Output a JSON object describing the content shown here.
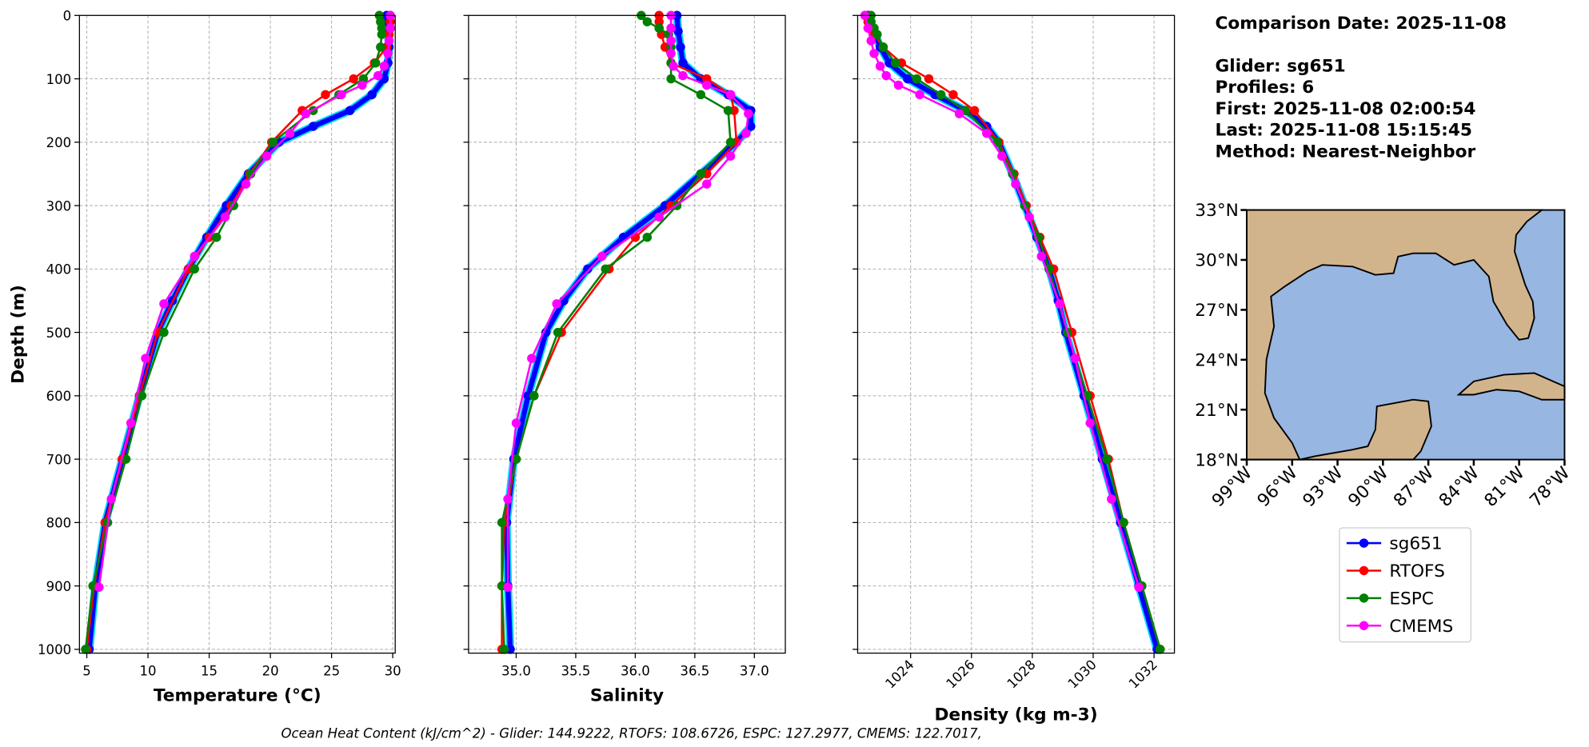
{
  "chart_data": [
    {
      "type": "line",
      "xlabel": "Temperature (°C)",
      "ylabel": "Depth (m)",
      "xlim": [
        4.4,
        30.2
      ],
      "xticks": [
        5,
        10,
        15,
        20,
        25,
        30
      ],
      "ylim": [
        1006,
        0
      ],
      "yticks": [
        0,
        100,
        200,
        300,
        400,
        500,
        600,
        700,
        800,
        900,
        1000
      ],
      "grid": true,
      "series": [
        {
          "name": "sg651",
          "color": "#0000ff",
          "x": [
            29.5,
            29.6,
            29.7,
            29.6,
            29.3,
            28.3,
            26.5,
            23.5,
            20.7,
            18.2,
            16.4,
            14.8,
            13.3,
            12.0,
            10.8,
            9.3,
            7.9,
            6.5,
            5.7,
            5.2
          ],
          "values": [
            0,
            25,
            50,
            75,
            100,
            125,
            150,
            175,
            200,
            250,
            300,
            350,
            400,
            450,
            500,
            600,
            700,
            800,
            900,
            1000
          ]
        },
        {
          "name": "RTOFS",
          "color": "#ff0000",
          "x": [
            29.8,
            29.8,
            29.8,
            29.7,
            29.5,
            28.5,
            26.8,
            24.5,
            22.6,
            20.1,
            18.3,
            16.8,
            15.0,
            13.3,
            10.8,
            9.3,
            7.9,
            6.5,
            5.6,
            5.0
          ],
          "values": [
            0,
            10,
            20,
            30,
            50,
            75,
            100,
            125,
            150,
            200,
            250,
            300,
            350,
            400,
            500,
            600,
            700,
            800,
            900,
            1000
          ]
        },
        {
          "name": "ESPC",
          "color": "#008000",
          "x": [
            28.9,
            29.0,
            29.1,
            29.1,
            29.0,
            28.6,
            27.6,
            25.6,
            23.5,
            20.2,
            18.4,
            17.0,
            15.6,
            13.8,
            11.3,
            9.5,
            8.2,
            6.7,
            5.5,
            4.9
          ],
          "values": [
            0,
            10,
            20,
            30,
            50,
            75,
            100,
            125,
            150,
            200,
            250,
            300,
            350,
            400,
            500,
            600,
            700,
            800,
            900,
            1000
          ]
        },
        {
          "name": "CMEMS",
          "color": "#ff00ff",
          "x": [
            29.8,
            29.8,
            29.7,
            29.6,
            29.3,
            28.8,
            27.5,
            25.8,
            22.9,
            21.6,
            19.7,
            18.0,
            16.3,
            13.8,
            11.3,
            9.8,
            8.6,
            7.0,
            6.0
          ],
          "values": [
            0,
            20,
            40,
            60,
            80,
            95,
            110,
            125,
            155,
            186,
            222,
            266,
            318,
            380,
            455,
            541,
            643,
            763,
            902
          ]
        }
      ]
    },
    {
      "type": "line",
      "xlabel": "Salinity",
      "xlim": [
        34.6,
        37.26
      ],
      "xticks": [
        {
          "value": 35,
          "label": "35.0"
        },
        35.5,
        {
          "value": 36,
          "label": "36.0"
        },
        36.5,
        {
          "value": 37,
          "label": "37.0"
        }
      ],
      "ylim": [
        1006,
        0
      ],
      "yticks": [
        0,
        100,
        200,
        300,
        400,
        500,
        600,
        700,
        800,
        900,
        1000
      ],
      "grid": true,
      "series": [
        {
          "color": "#0000ff",
          "x": [
            36.35,
            36.36,
            36.38,
            36.4,
            36.55,
            36.78,
            36.97,
            36.97,
            36.85,
            36.55,
            36.25,
            35.9,
            35.6,
            35.4,
            35.25,
            35.1,
            34.98,
            34.92,
            34.93,
            34.95
          ],
          "values": [
            0,
            25,
            50,
            75,
            100,
            125,
            150,
            175,
            200,
            250,
            300,
            350,
            400,
            450,
            500,
            600,
            700,
            800,
            900,
            1000
          ]
        },
        {
          "color": "#ff0000",
          "x": [
            36.2,
            36.2,
            36.2,
            36.22,
            36.25,
            36.3,
            36.6,
            36.8,
            36.83,
            36.85,
            36.6,
            36.3,
            36.0,
            35.78,
            35.38,
            35.15,
            35.0,
            34.9,
            34.88,
            34.88
          ],
          "values": [
            0,
            10,
            20,
            30,
            50,
            75,
            100,
            125,
            150,
            200,
            250,
            300,
            350,
            400,
            500,
            600,
            700,
            800,
            900,
            1000
          ]
        },
        {
          "color": "#008000",
          "x": [
            36.05,
            36.1,
            36.2,
            36.28,
            36.3,
            36.3,
            36.3,
            36.55,
            36.78,
            36.8,
            36.55,
            36.35,
            36.1,
            35.75,
            35.35,
            35.15,
            35.0,
            34.88,
            34.88,
            34.9
          ],
          "values": [
            0,
            10,
            20,
            30,
            50,
            75,
            100,
            125,
            150,
            200,
            250,
            300,
            350,
            400,
            500,
            600,
            700,
            800,
            900,
            1000
          ]
        },
        {
          "color": "#ff00ff",
          "x": [
            36.3,
            36.3,
            36.3,
            36.3,
            36.32,
            36.4,
            36.6,
            36.8,
            36.95,
            36.93,
            36.8,
            36.6,
            36.2,
            35.72,
            35.34,
            35.13,
            35.0,
            34.93,
            34.93
          ],
          "values": [
            0,
            20,
            40,
            60,
            80,
            95,
            110,
            125,
            155,
            186,
            222,
            266,
            318,
            380,
            455,
            541,
            643,
            763,
            902
          ]
        }
      ]
    },
    {
      "type": "line",
      "xlabel": "Density (kg m-3)",
      "xlim": [
        1022.26,
        1032.67
      ],
      "xticks": [
        1024,
        1026,
        1028,
        1030,
        1032
      ],
      "ylim": [
        1006,
        0
      ],
      "yticks": [
        0,
        100,
        200,
        300,
        400,
        500,
        600,
        700,
        800,
        900,
        1000
      ],
      "grid": true,
      "series": [
        {
          "color": "#0000ff",
          "x": [
            1022.6,
            1022.8,
            1023.0,
            1023.3,
            1023.9,
            1024.8,
            1025.8,
            1026.5,
            1026.9,
            1027.35,
            1027.75,
            1028.15,
            1028.55,
            1028.85,
            1029.1,
            1029.7,
            1030.3,
            1030.9,
            1031.5,
            1032.1
          ],
          "values": [
            0,
            25,
            50,
            75,
            100,
            125,
            150,
            175,
            200,
            250,
            300,
            350,
            400,
            450,
            500,
            600,
            700,
            800,
            900,
            1000
          ]
        },
        {
          "color": "#ff0000",
          "x": [
            1022.5,
            1022.6,
            1022.7,
            1022.8,
            1023.1,
            1023.7,
            1024.6,
            1025.4,
            1026.1,
            1026.9,
            1027.4,
            1027.8,
            1028.25,
            1028.7,
            1029.3,
            1029.9,
            1030.5,
            1031.0,
            1031.6,
            1032.2
          ],
          "values": [
            0,
            10,
            20,
            30,
            50,
            75,
            100,
            125,
            150,
            200,
            250,
            300,
            350,
            400,
            500,
            600,
            700,
            800,
            900,
            1000
          ]
        },
        {
          "color": "#008000",
          "x": [
            1022.7,
            1022.7,
            1022.8,
            1022.9,
            1023.1,
            1023.5,
            1024.2,
            1025.0,
            1025.8,
            1026.85,
            1027.35,
            1027.75,
            1028.2,
            1028.55,
            1029.15,
            1029.8,
            1030.45,
            1031.0,
            1031.6,
            1032.2
          ],
          "values": [
            0,
            10,
            20,
            30,
            50,
            75,
            100,
            125,
            150,
            200,
            250,
            300,
            350,
            400,
            500,
            600,
            700,
            800,
            900,
            1000
          ]
        },
        {
          "color": "#ff00ff",
          "x": [
            1022.5,
            1022.6,
            1022.7,
            1022.8,
            1023.0,
            1023.2,
            1023.6,
            1024.3,
            1025.6,
            1026.5,
            1027.0,
            1027.45,
            1027.9,
            1028.3,
            1028.9,
            1029.4,
            1029.9,
            1030.6,
            1031.5
          ],
          "values": [
            0,
            20,
            40,
            60,
            80,
            95,
            110,
            125,
            155,
            186,
            222,
            266,
            318,
            380,
            455,
            541,
            643,
            763,
            902
          ]
        }
      ]
    }
  ],
  "info": {
    "lines": [
      "Comparison Date: 2025-11-08",
      "Glider: sg651",
      "Profiles: 6",
      "First: 2025-11-08 02:00:54",
      "Last: 2025-11-08 15:15:45",
      "Method: Nearest-Neighbor"
    ]
  },
  "map": {
    "xlim": [
      -99,
      -78
    ],
    "ylim": [
      18,
      33
    ],
    "xticks": [
      {
        "value": -99,
        "label": "99°W"
      },
      {
        "value": -96,
        "label": "96°W"
      },
      {
        "value": -93,
        "label": "93°W"
      },
      {
        "value": -90,
        "label": "90°W"
      },
      {
        "value": -87,
        "label": "87°W"
      },
      {
        "value": -84,
        "label": "84°W"
      },
      {
        "value": -81,
        "label": "81°W"
      },
      {
        "value": -78,
        "label": "78°W"
      }
    ],
    "yticks": [
      {
        "value": 18,
        "label": "18°N"
      },
      {
        "value": 21,
        "label": "21°N"
      },
      {
        "value": 24,
        "label": "24°N"
      },
      {
        "value": 27,
        "label": "27°N"
      },
      {
        "value": 30,
        "label": "30°N"
      },
      {
        "value": 33,
        "label": "33°N"
      }
    ]
  },
  "footer": "Ocean Heat Content (kJ/cm^2) - Glider: 144.9222,  RTOFS: 108.6726,  ESPC: 127.2977,  CMEMS: 122.7017,"
}
